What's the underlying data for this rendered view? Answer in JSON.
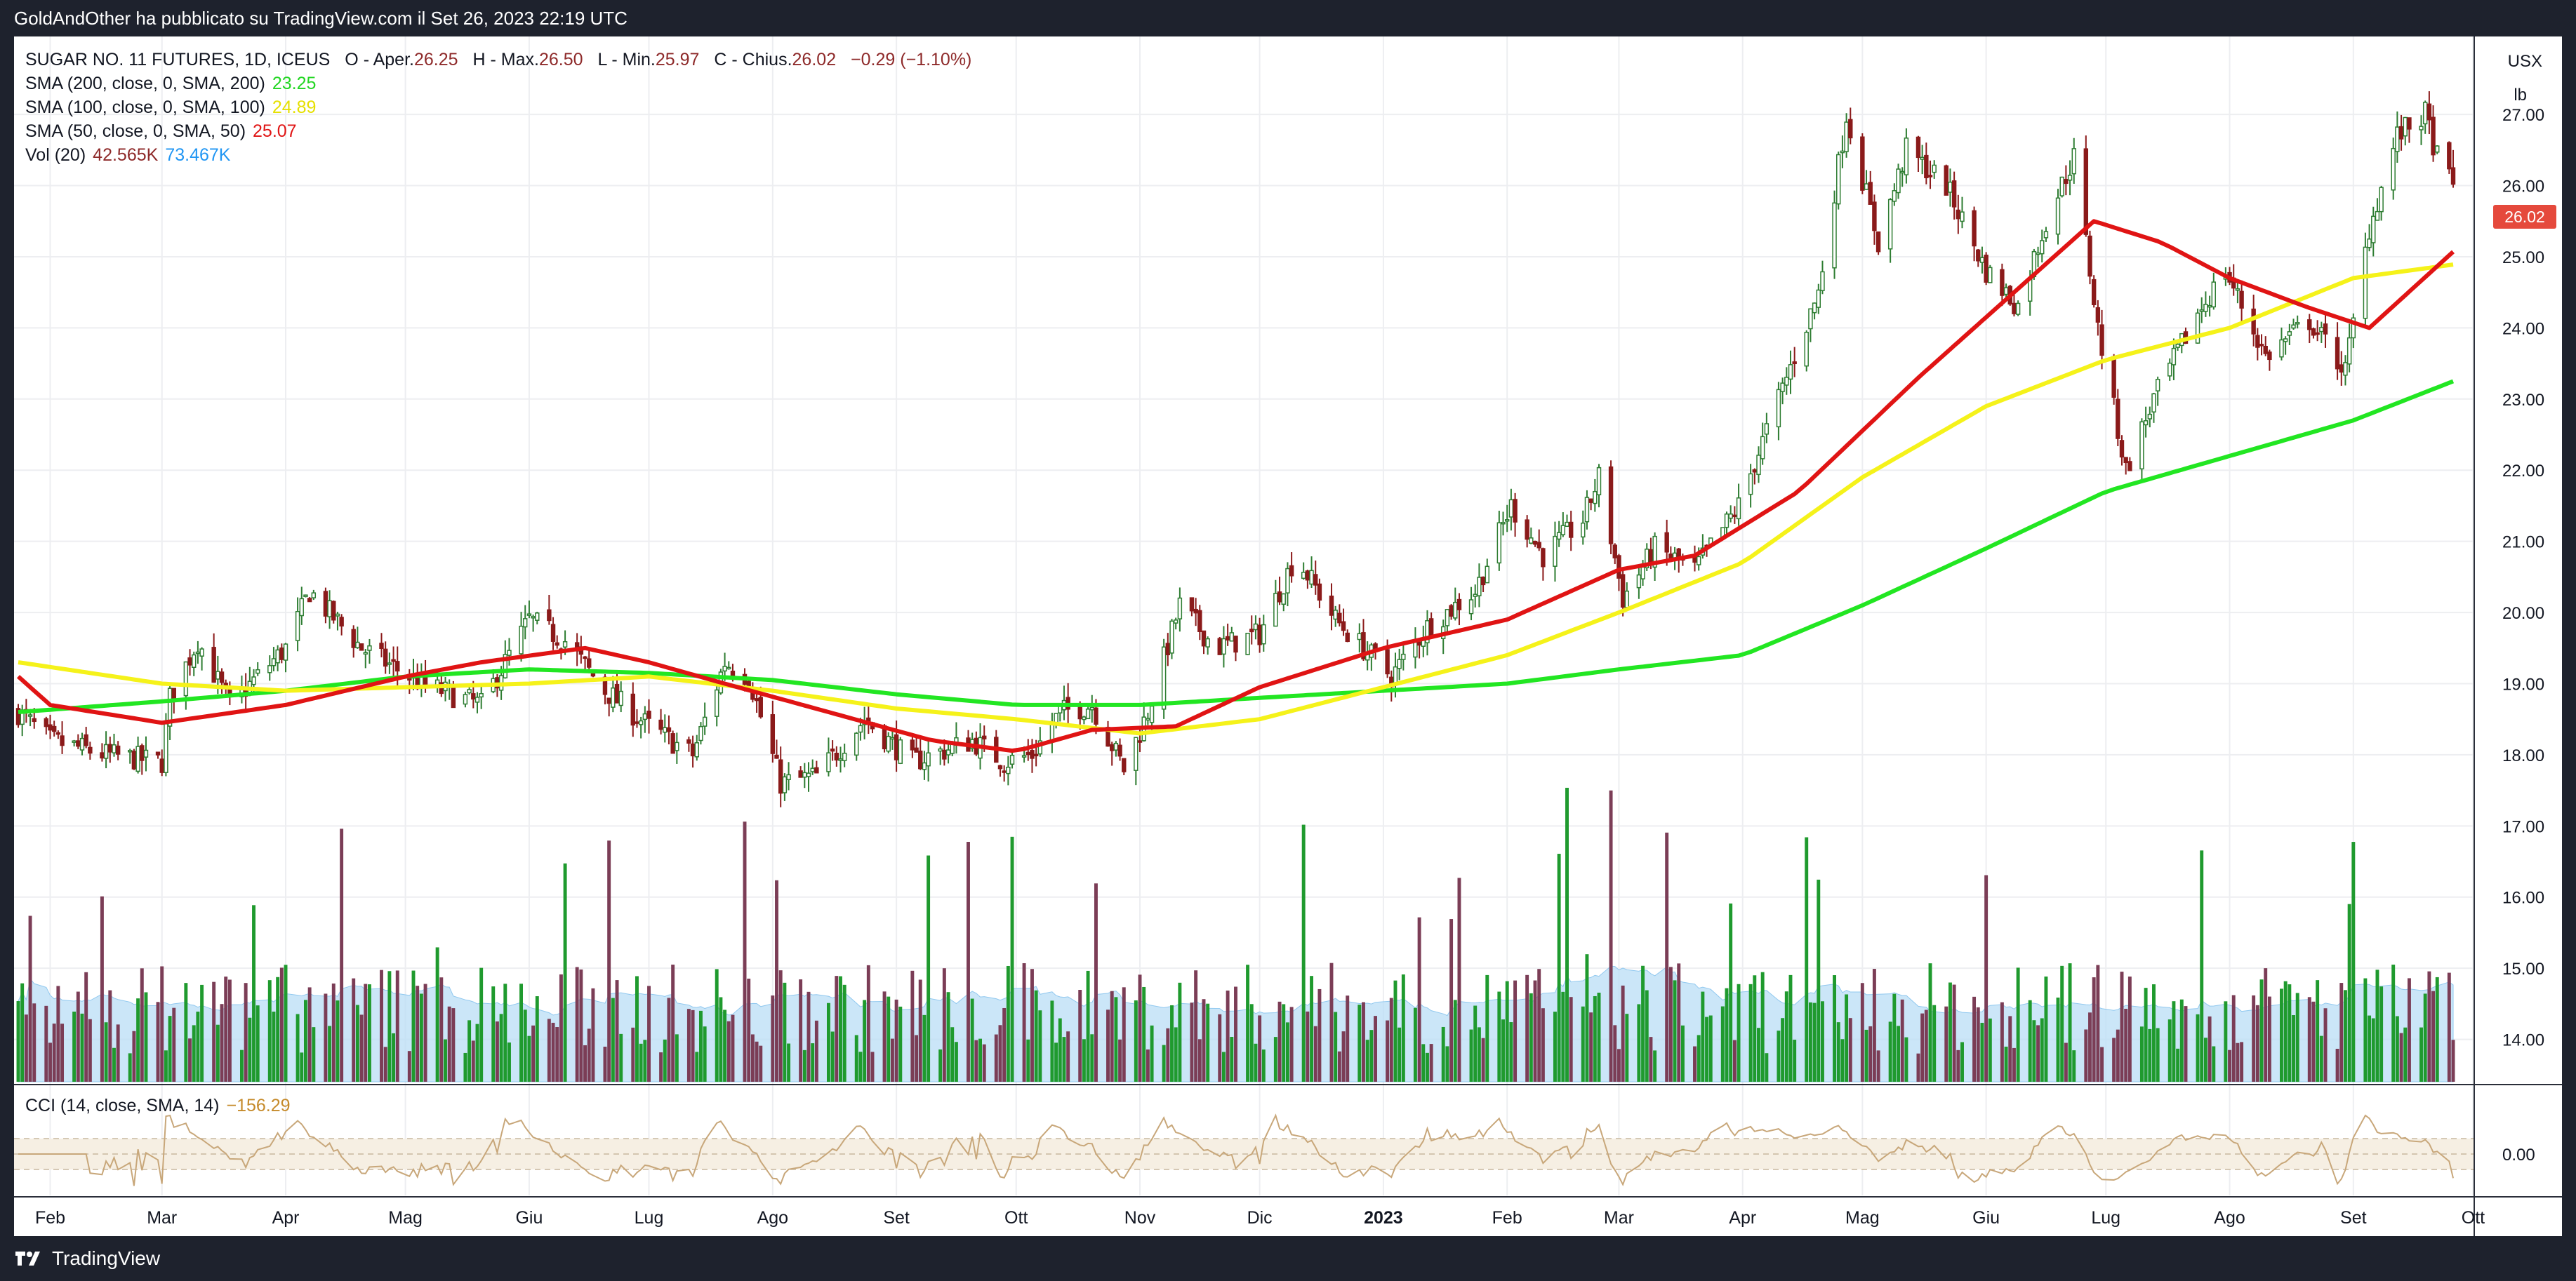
{
  "header": {
    "published_text": "GoldAndOther ha pubblicato su TradingView.com il Set 26, 2023 22:19 UTC"
  },
  "footer": {
    "brand": "TradingView"
  },
  "legend": {
    "symbol": "SUGAR NO. 11 FUTURES, 1D, ICEUS",
    "ohlc": [
      {
        "label": "O - Aper.",
        "value": "26.25"
      },
      {
        "label": "H - Max.",
        "value": "26.50"
      },
      {
        "label": "L - Min.",
        "value": "25.97"
      },
      {
        "label": "C - Chius.",
        "value": "26.02"
      }
    ],
    "change": "−0.29 (−1.10%)",
    "sma200_label": "SMA (200, close, 0, SMA, 200)",
    "sma200_value": "23.25",
    "sma100_label": "SMA (100, close, 0, SMA, 100)",
    "sma100_value": "24.89",
    "sma50_label": "SMA (50, close, 0, SMA, 50)",
    "sma50_value": "25.07",
    "vol_label": "Vol (20)",
    "vol_value": "42.565K",
    "vol_ma_value": "73.467K",
    "cci_label": "CCI (14, close, SMA, 14)",
    "cci_value": "−156.29"
  },
  "axis": {
    "currency": "USX",
    "unit": "lb",
    "price_tag": "26.02",
    "cci_tick": "0.00"
  },
  "colors": {
    "up": "#089981",
    "up_bar": "#2e7d32",
    "down": "#8e2a2a",
    "vol_up": "#1f9a2e",
    "vol_down": "#7b3d56",
    "sma200": "#22e622",
    "sma100": "#f5f21a",
    "sma50": "#e01414",
    "vol_ma_fill": "#b9ddf6",
    "cci_line": "#c8a77a",
    "cci_band": "#f6efe3",
    "grid": "#edeef1",
    "tag": "#e5493c"
  },
  "chart_data": {
    "type": "candlestick",
    "x_range": [
      "2022-01-24",
      "2023-09-26"
    ],
    "x_tick_labels": [
      "Feb",
      "Mar",
      "Apr",
      "Mag",
      "Giu",
      "Lug",
      "Ago",
      "Set",
      "Ott",
      "Nov",
      "Dic",
      "2023",
      "Feb",
      "Mar",
      "Apr",
      "Mag",
      "Giu",
      "Lug",
      "Ago",
      "Set",
      "Ott"
    ],
    "y_ticks": [
      14.0,
      15.0,
      16.0,
      17.0,
      18.0,
      19.0,
      20.0,
      21.0,
      22.0,
      23.0,
      24.0,
      25.0,
      26.0,
      27.0
    ],
    "y_range": [
      13.7,
      27.8
    ],
    "price_keypoints": [
      {
        "date": "2022-01-24",
        "close": 18.6
      },
      {
        "date": "2022-02-01",
        "close": 18.2
      },
      {
        "date": "2022-02-15",
        "close": 18.0
      },
      {
        "date": "2022-03-01",
        "close": 17.9
      },
      {
        "date": "2022-03-03",
        "close": 18.8
      },
      {
        "date": "2022-03-10",
        "close": 19.6
      },
      {
        "date": "2022-03-18",
        "close": 18.7
      },
      {
        "date": "2022-04-01",
        "close": 19.5
      },
      {
        "date": "2022-04-07",
        "close": 20.3
      },
      {
        "date": "2022-04-20",
        "close": 19.5
      },
      {
        "date": "2022-05-05",
        "close": 19.0
      },
      {
        "date": "2022-05-20",
        "close": 18.7
      },
      {
        "date": "2022-06-01",
        "close": 19.9
      },
      {
        "date": "2022-06-10",
        "close": 19.6
      },
      {
        "date": "2022-06-20",
        "close": 18.9
      },
      {
        "date": "2022-07-01",
        "close": 18.4
      },
      {
        "date": "2022-07-12",
        "close": 18.0
      },
      {
        "date": "2022-07-20",
        "close": 19.3
      },
      {
        "date": "2022-07-26",
        "close": 19.1
      },
      {
        "date": "2022-08-03",
        "close": 17.6
      },
      {
        "date": "2022-08-12",
        "close": 17.7
      },
      {
        "date": "2022-08-24",
        "close": 18.5
      },
      {
        "date": "2022-09-05",
        "close": 17.9
      },
      {
        "date": "2022-09-20",
        "close": 18.2
      },
      {
        "date": "2022-09-28",
        "close": 17.9
      },
      {
        "date": "2022-10-05",
        "close": 18.0
      },
      {
        "date": "2022-10-12",
        "close": 18.6
      },
      {
        "date": "2022-10-20",
        "close": 18.7
      },
      {
        "date": "2022-10-28",
        "close": 17.8
      },
      {
        "date": "2022-11-03",
        "close": 18.6
      },
      {
        "date": "2022-11-11",
        "close": 20.1
      },
      {
        "date": "2022-11-20",
        "close": 19.5
      },
      {
        "date": "2022-12-01",
        "close": 19.7
      },
      {
        "date": "2022-12-10",
        "close": 20.8
      },
      {
        "date": "2022-12-20",
        "close": 19.9
      },
      {
        "date": "2023-01-03",
        "close": 19.1
      },
      {
        "date": "2023-01-12",
        "close": 19.8
      },
      {
        "date": "2023-01-24",
        "close": 20.3
      },
      {
        "date": "2023-02-02",
        "close": 21.5
      },
      {
        "date": "2023-02-10",
        "close": 20.8
      },
      {
        "date": "2023-02-20",
        "close": 21.3
      },
      {
        "date": "2023-02-24",
        "close": 21.9
      },
      {
        "date": "2023-03-02",
        "close": 20.2
      },
      {
        "date": "2023-03-10",
        "close": 20.9
      },
      {
        "date": "2023-03-20",
        "close": 20.6
      },
      {
        "date": "2023-03-31",
        "close": 21.5
      },
      {
        "date": "2023-04-10",
        "close": 23.0
      },
      {
        "date": "2023-04-20",
        "close": 24.5
      },
      {
        "date": "2023-04-27",
        "close": 27.0
      },
      {
        "date": "2023-05-05",
        "close": 25.2
      },
      {
        "date": "2023-05-12",
        "close": 26.5
      },
      {
        "date": "2023-05-22",
        "close": 26.0
      },
      {
        "date": "2023-06-01",
        "close": 24.8
      },
      {
        "date": "2023-06-09",
        "close": 24.3
      },
      {
        "date": "2023-06-16",
        "close": 25.5
      },
      {
        "date": "2023-06-23",
        "close": 26.4
      },
      {
        "date": "2023-06-29",
        "close": 24.0
      },
      {
        "date": "2023-07-06",
        "close": 22.0
      },
      {
        "date": "2023-07-13",
        "close": 23.0
      },
      {
        "date": "2023-07-24",
        "close": 24.2
      },
      {
        "date": "2023-07-31",
        "close": 24.8
      },
      {
        "date": "2023-08-10",
        "close": 23.6
      },
      {
        "date": "2023-08-21",
        "close": 24.1
      },
      {
        "date": "2023-08-30",
        "close": 23.4
      },
      {
        "date": "2023-09-05",
        "close": 25.4
      },
      {
        "date": "2023-09-12",
        "close": 26.7
      },
      {
        "date": "2023-09-19",
        "close": 27.0
      },
      {
        "date": "2023-09-22",
        "close": 26.4
      },
      {
        "date": "2023-09-26",
        "close": 26.02
      }
    ],
    "sma50": [
      {
        "date": "2022-01-24",
        "v": 19.1
      },
      {
        "date": "2022-02-01",
        "v": 18.7
      },
      {
        "date": "2022-03-01",
        "v": 18.45
      },
      {
        "date": "2022-04-01",
        "v": 18.7
      },
      {
        "date": "2022-05-01",
        "v": 19.1
      },
      {
        "date": "2022-05-20",
        "v": 19.3
      },
      {
        "date": "2022-06-15",
        "v": 19.5
      },
      {
        "date": "2022-07-01",
        "v": 19.3
      },
      {
        "date": "2022-07-20",
        "v": 19.0
      },
      {
        "date": "2022-08-15",
        "v": 18.6
      },
      {
        "date": "2022-09-10",
        "v": 18.2
      },
      {
        "date": "2022-10-01",
        "v": 18.05
      },
      {
        "date": "2022-10-20",
        "v": 18.35
      },
      {
        "date": "2022-11-10",
        "v": 18.4
      },
      {
        "date": "2022-12-01",
        "v": 18.95
      },
      {
        "date": "2023-01-01",
        "v": 19.5
      },
      {
        "date": "2023-02-01",
        "v": 19.9
      },
      {
        "date": "2023-03-01",
        "v": 20.6
      },
      {
        "date": "2023-03-20",
        "v": 20.8
      },
      {
        "date": "2023-04-15",
        "v": 21.7
      },
      {
        "date": "2023-05-15",
        "v": 23.3
      },
      {
        "date": "2023-06-10",
        "v": 24.6
      },
      {
        "date": "2023-06-28",
        "v": 25.5
      },
      {
        "date": "2023-07-15",
        "v": 25.2
      },
      {
        "date": "2023-08-01",
        "v": 24.7
      },
      {
        "date": "2023-08-20",
        "v": 24.3
      },
      {
        "date": "2023-09-05",
        "v": 24.0
      },
      {
        "date": "2023-09-26",
        "v": 25.07
      }
    ],
    "sma100": [
      {
        "date": "2022-01-24",
        "v": 19.3
      },
      {
        "date": "2022-03-01",
        "v": 19.0
      },
      {
        "date": "2022-04-01",
        "v": 18.9
      },
      {
        "date": "2022-05-01",
        "v": 18.95
      },
      {
        "date": "2022-06-01",
        "v": 19.0
      },
      {
        "date": "2022-07-01",
        "v": 19.1
      },
      {
        "date": "2022-08-01",
        "v": 18.9
      },
      {
        "date": "2022-09-01",
        "v": 18.65
      },
      {
        "date": "2022-10-01",
        "v": 18.5
      },
      {
        "date": "2022-11-01",
        "v": 18.3
      },
      {
        "date": "2022-12-01",
        "v": 18.5
      },
      {
        "date": "2023-01-01",
        "v": 18.95
      },
      {
        "date": "2023-02-01",
        "v": 19.4
      },
      {
        "date": "2023-03-01",
        "v": 20.0
      },
      {
        "date": "2023-04-01",
        "v": 20.7
      },
      {
        "date": "2023-05-01",
        "v": 21.9
      },
      {
        "date": "2023-06-01",
        "v": 22.9
      },
      {
        "date": "2023-07-01",
        "v": 23.55
      },
      {
        "date": "2023-08-01",
        "v": 24.0
      },
      {
        "date": "2023-09-01",
        "v": 24.7
      },
      {
        "date": "2023-09-26",
        "v": 24.89
      }
    ],
    "sma200": [
      {
        "date": "2022-01-24",
        "v": 18.6
      },
      {
        "date": "2022-03-01",
        "v": 18.75
      },
      {
        "date": "2022-04-01",
        "v": 18.9
      },
      {
        "date": "2022-05-01",
        "v": 19.1
      },
      {
        "date": "2022-06-01",
        "v": 19.2
      },
      {
        "date": "2022-07-01",
        "v": 19.15
      },
      {
        "date": "2022-08-01",
        "v": 19.05
      },
      {
        "date": "2022-09-01",
        "v": 18.85
      },
      {
        "date": "2022-10-01",
        "v": 18.7
      },
      {
        "date": "2022-11-01",
        "v": 18.7
      },
      {
        "date": "2022-12-01",
        "v": 18.8
      },
      {
        "date": "2023-01-01",
        "v": 18.9
      },
      {
        "date": "2023-02-01",
        "v": 19.0
      },
      {
        "date": "2023-03-01",
        "v": 19.2
      },
      {
        "date": "2023-04-01",
        "v": 19.4
      },
      {
        "date": "2023-05-01",
        "v": 20.1
      },
      {
        "date": "2023-06-01",
        "v": 20.9
      },
      {
        "date": "2023-07-01",
        "v": 21.7
      },
      {
        "date": "2023-08-01",
        "v": 22.2
      },
      {
        "date": "2023-09-01",
        "v": 22.7
      },
      {
        "date": "2023-09-26",
        "v": 23.25
      }
    ],
    "volume_panel": {
      "last_volume": "42.565K",
      "volume_ma20": "73.467K"
    },
    "cci": {
      "params": "14, close, SMA, 14",
      "last": -156.29,
      "bands": [
        100,
        -100
      ]
    }
  }
}
